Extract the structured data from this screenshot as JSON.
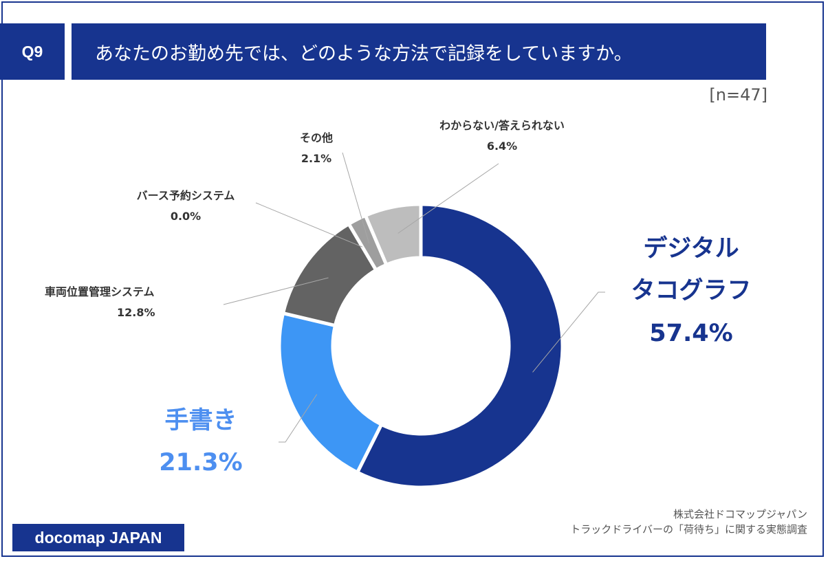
{
  "header": {
    "q_number": "Q9",
    "title": "あなたのお勤め先では、どのような方法で記録をしていますか。"
  },
  "sample": "[n=47]",
  "chart_data": {
    "type": "pie",
    "donut": true,
    "slices": [
      {
        "label_lines": [
          "デジタル",
          "タコグラフ"
        ],
        "value": 57.4,
        "display": "57.4%",
        "color": "#17348f"
      },
      {
        "label_lines": [
          "手書き"
        ],
        "value": 21.3,
        "display": "21.3%",
        "color": "#3d96f5"
      },
      {
        "label_lines": [
          "車両位置管理システム"
        ],
        "value": 12.8,
        "display": "12.8%",
        "color": "#636363"
      },
      {
        "label_lines": [
          "バース予約システム"
        ],
        "value": 0.0,
        "display": "0.0%",
        "color": "#d9d9d9"
      },
      {
        "label_lines": [
          "その他"
        ],
        "value": 2.1,
        "display": "2.1%",
        "color": "#9e9e9e"
      },
      {
        "label_lines": [
          "わからない/答えられない"
        ],
        "value": 6.4,
        "display": "6.4%",
        "color": "#bdbdbd"
      }
    ]
  },
  "footer": {
    "source_line1": "株式会社ドコマップジャパン",
    "source_line2": "トラックドライバーの「荷待ち」に関する実態調査",
    "logo_text": "docomap JAPAN"
  }
}
